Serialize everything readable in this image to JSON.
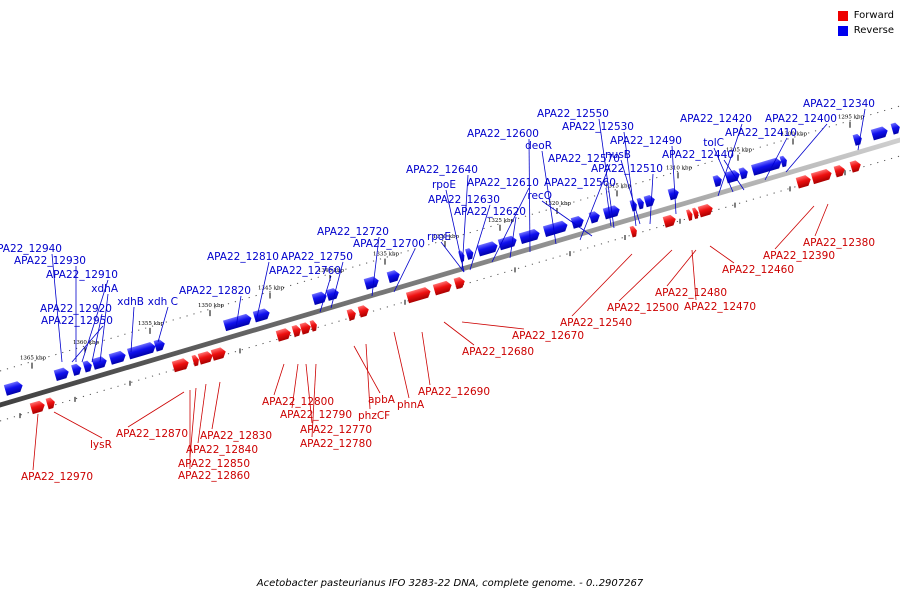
{
  "legend": {
    "forward_label": "Forward",
    "reverse_label": "Reverse",
    "forward_color": "#ee0000",
    "reverse_color": "#0000ee"
  },
  "caption": "Acetobacter pasteurianus IFO 3283-22 DNA, complete genome. - 0..2907267",
  "ticks": [
    "1365 kbp",
    "1360 kbp",
    "1355 kbp",
    "1350 kbp",
    "1345 kbp",
    "1340 kbp",
    "1335 kbp",
    "1330 kbp",
    "1325 kbp",
    "1320 kbp",
    "1315 kbp",
    "1310 kbp",
    "1305 kbp",
    "1300 kbp",
    "1295 kbp"
  ],
  "reverse_labels": [
    "APA22_12940",
    "APA22_12930",
    "APA22_12910",
    "xdhA",
    "xdhB",
    "xdh C",
    "APA22_12920",
    "APA22_12950",
    "APA22_12810",
    "APA22_12820",
    "APA22_12750",
    "APA22_12760",
    "APA22_12720",
    "APA22_12700",
    "APA22_12640",
    "rpoE",
    "APA22_12630",
    "rpoE",
    "APA22_12610",
    "APA22_12620",
    "APA22_12600",
    "deoR",
    "APA22_12570",
    "recQ",
    "APA22_12550",
    "APA22_12530",
    "nusB",
    "APA22_12560",
    "APA22_12510",
    "APA22_12490",
    "APA22_12420",
    "tolC",
    "APA22_12440",
    "APA22_12410",
    "APA22_12400",
    "APA22_12340"
  ],
  "forward_labels": [
    "APA22_12380",
    "APA22_12390",
    "APA22_12460",
    "APA22_12480",
    "APA22_12470",
    "APA22_12500",
    "APA22_12540",
    "APA22_12670",
    "APA22_12680",
    "APA22_12690",
    "APA22_12800",
    "APA22_12790",
    "APA22_12770",
    "APA22_12780",
    "apbA",
    "phzCF",
    "phnA",
    "APA22_12870",
    "APA22_12830",
    "APA22_12840",
    "APA22_12850",
    "APA22_12860",
    "lysR",
    "APA22_12970"
  ]
}
